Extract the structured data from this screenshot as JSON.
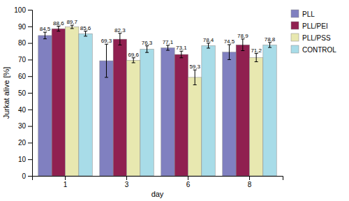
{
  "chart_data": {
    "type": "bar",
    "xlabel": "day",
    "ylabel": "Jurkat alive [%]",
    "categories": [
      "1",
      "3",
      "6",
      "8"
    ],
    "series": [
      {
        "name": "PLL",
        "color": "#8080C0",
        "values": [
          84.5,
          69.3,
          77.1,
          74.5
        ],
        "errors": [
          2.0,
          10.0,
          1.5,
          4.5
        ],
        "value_labels": [
          "84,5",
          "69,3",
          "77,1",
          "74,5"
        ]
      },
      {
        "name": "PLL/PEI",
        "color": "#902050",
        "values": [
          88.6,
          82.3,
          73.1,
          78.9
        ],
        "errors": [
          1.5,
          3.5,
          2.0,
          3.5
        ],
        "value_labels": [
          "88,6",
          "82,3",
          "73,1",
          "78,9"
        ]
      },
      {
        "name": "PLL/PSS",
        "color": "#E8E8B0",
        "values": [
          89.7,
          69.6,
          59.3,
          71.2
        ],
        "errors": [
          1.0,
          1.5,
          4.5,
          2.5
        ],
        "value_labels": [
          "89,7",
          "69,6",
          "59,3",
          "71,2"
        ]
      },
      {
        "name": "CONTROL",
        "color": "#A8DCE8",
        "values": [
          85.6,
          76.3,
          78.4,
          78.8
        ],
        "errors": [
          1.5,
          2.0,
          1.5,
          1.5
        ],
        "value_labels": [
          "85,6",
          "76,3",
          "78,4",
          "78,8"
        ]
      }
    ],
    "ylim": [
      0,
      100
    ],
    "yticks": [
      0,
      10,
      20,
      30,
      40,
      50,
      60,
      70,
      80,
      90,
      100
    ],
    "grid": false,
    "legend": "right",
    "data_labels": true
  }
}
